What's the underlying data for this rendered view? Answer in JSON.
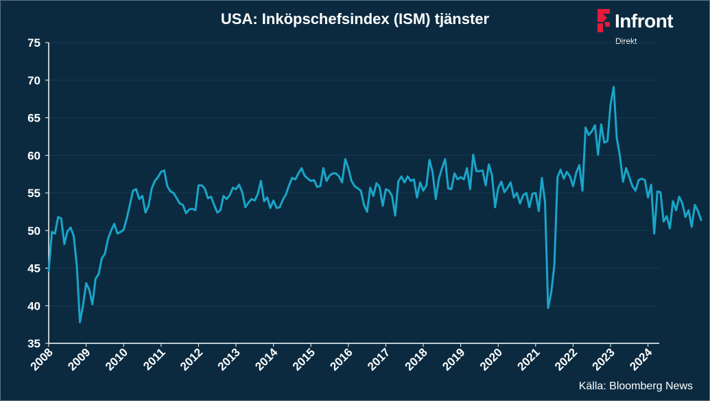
{
  "title": "USA: Inköpschefsindex (ISM) tjänster",
  "logo": {
    "name": "Infront",
    "sub": "Direkt",
    "color": "#e31b3a"
  },
  "source": "Källa:  Bloomberg News",
  "colors": {
    "background": "#0b2a40",
    "line": "#1aa5c8",
    "axis": "#ffffff",
    "grid": "#16384f"
  },
  "chart_data": {
    "type": "line",
    "title": "USA: Inköpschefsindex (ISM) tjänster",
    "xlabel": "",
    "ylabel": "",
    "ylim": [
      35,
      75
    ],
    "yticks": [
      35,
      40,
      45,
      50,
      55,
      60,
      65,
      70,
      75
    ],
    "xlim": [
      2008,
      2024.3
    ],
    "xticks": [
      "2008",
      "2009",
      "2010",
      "2011",
      "2012",
      "2013",
      "2014",
      "2015",
      "2016",
      "2017",
      "2018",
      "2019",
      "2020",
      "2021",
      "2022",
      "2023",
      "2024"
    ],
    "grid": true,
    "series": [
      {
        "start": "2008-01",
        "frequency": "monthly",
        "values": [
          44.6,
          49.8,
          49.6,
          51.8,
          51.6,
          48.2,
          49.9,
          50.4,
          49.3,
          45.3,
          37.8,
          40.1,
          43.0,
          42.1,
          40.2,
          43.6,
          44.2,
          46.3,
          46.9,
          48.9,
          50.0,
          50.9,
          49.6,
          49.8,
          50.1,
          51.6,
          53.4,
          55.3,
          55.5,
          54.2,
          54.6,
          52.4,
          53.3,
          55.6,
          56.6,
          57.1,
          57.8,
          58.0,
          55.9,
          55.2,
          55.0,
          54.3,
          53.6,
          53.4,
          52.3,
          52.8,
          52.9,
          52.7,
          56.0,
          56.0,
          55.6,
          54.3,
          54.5,
          53.4,
          52.4,
          52.7,
          54.6,
          54.2,
          54.7,
          55.7,
          55.5,
          56.1,
          55.1,
          53.1,
          53.7,
          54.2,
          54.0,
          54.9,
          56.6,
          53.9,
          54.4,
          53.0,
          54.0,
          53.0,
          53.1,
          54.1,
          54.8,
          56.0,
          57.0,
          56.8,
          57.6,
          58.3,
          57.3,
          56.9,
          56.6,
          56.7,
          55.8,
          55.9,
          58.3,
          56.6,
          57.3,
          57.6,
          57.6,
          57.2,
          56.4,
          59.5,
          58.3,
          56.6,
          55.9,
          55.6,
          55.3,
          53.4,
          52.5,
          55.7,
          54.6,
          56.3,
          55.8,
          53.3,
          55.5,
          55.3,
          54.6,
          52.0,
          56.5,
          57.2,
          56.4,
          57.2,
          56.6,
          56.8,
          54.4,
          56.4,
          55.3,
          56.0,
          59.4,
          57.7,
          54.2,
          56.9,
          58.3,
          59.5,
          55.6,
          55.5,
          57.6,
          56.8,
          57.1,
          56.8,
          58.3,
          55.5,
          60.1,
          57.9,
          57.9,
          58.0,
          56.0,
          58.8,
          57.4,
          53.1,
          55.6,
          56.5,
          55.1,
          55.7,
          56.4,
          54.4,
          55.0,
          53.6,
          54.7,
          55.0,
          53.1,
          54.9,
          55.0,
          52.6,
          57.0,
          53.8,
          39.7,
          41.8,
          45.4,
          57.1,
          58.1,
          56.9,
          57.8,
          57.2,
          55.9,
          57.7,
          58.7,
          55.3,
          63.7,
          62.7,
          63.2,
          64.0,
          60.1,
          64.1,
          61.7,
          61.9,
          66.7,
          69.1,
          62.3,
          59.9,
          56.5,
          58.3,
          57.1,
          55.9,
          55.3,
          56.7,
          56.9,
          56.7,
          54.4,
          56.1,
          49.6,
          55.2,
          55.1,
          51.2,
          51.9,
          50.3,
          53.9,
          52.7,
          54.5,
          53.6,
          51.8,
          52.7,
          50.5,
          53.4,
          52.6,
          51.4
        ]
      }
    ]
  }
}
